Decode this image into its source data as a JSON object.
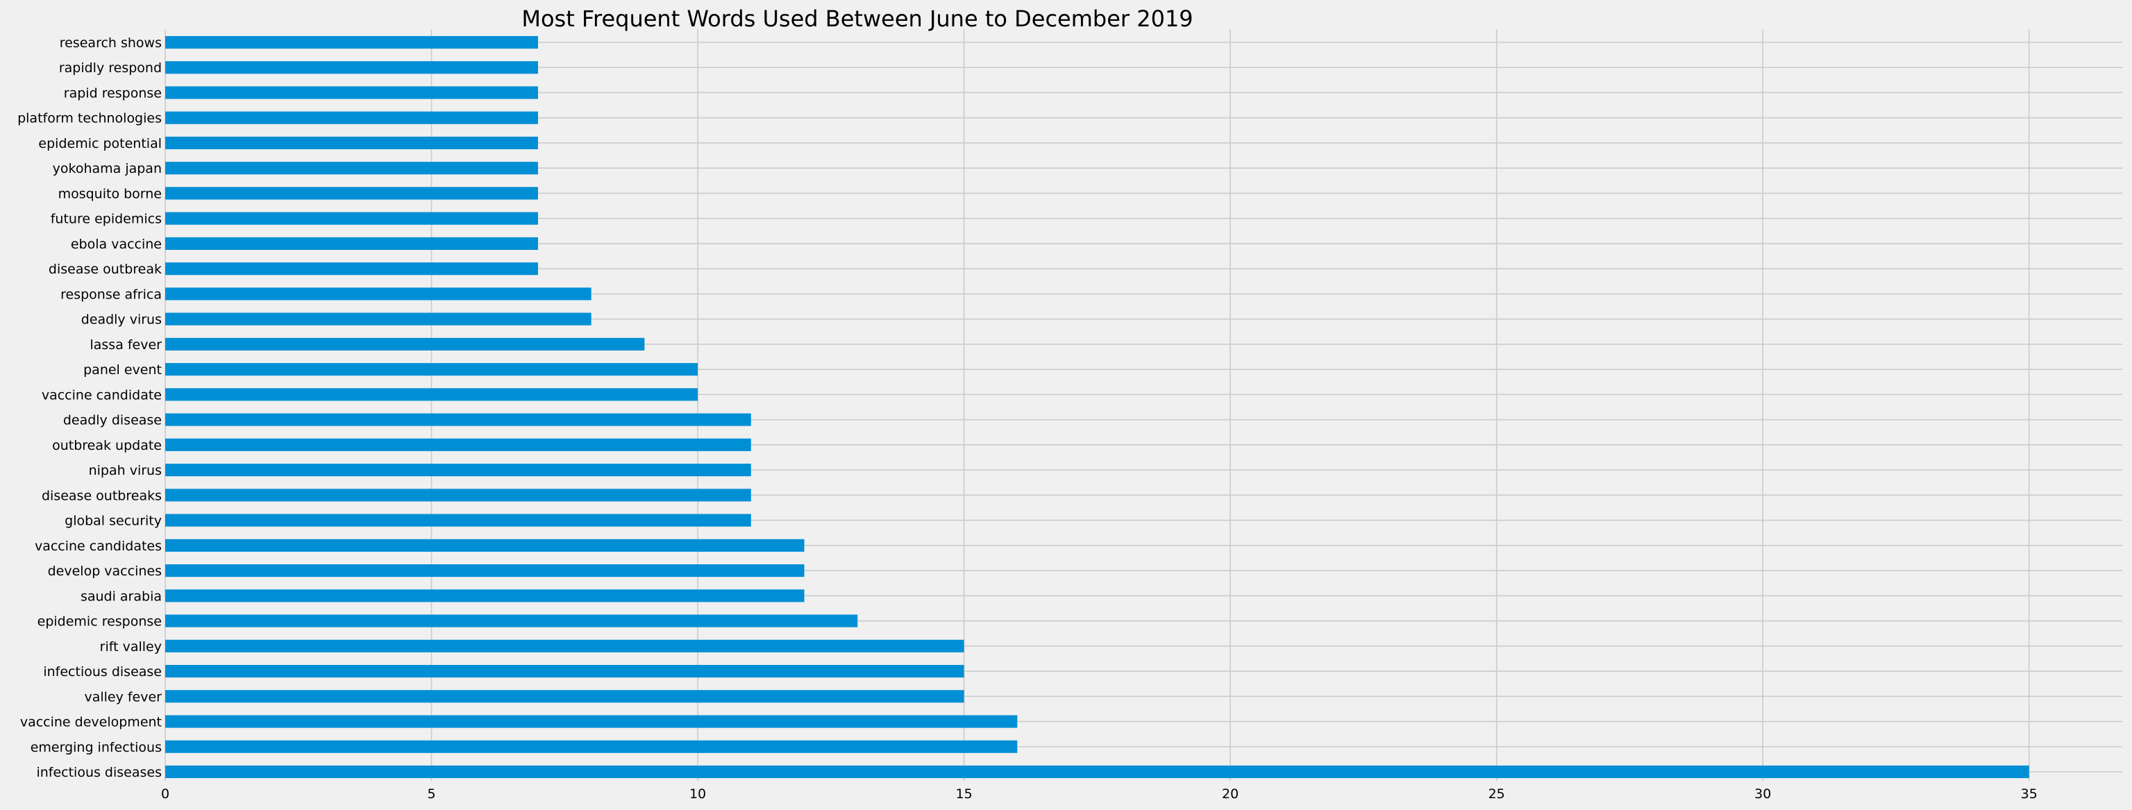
{
  "chart_data": {
    "type": "bar",
    "orientation": "horizontal",
    "title": "Most Frequent Words Used Between June to December 2019",
    "xlabel": "",
    "ylabel": "",
    "xlim": [
      0,
      36.75
    ],
    "x_ticks": [
      0,
      5,
      10,
      15,
      20,
      25,
      30,
      35
    ],
    "grid": true,
    "bar_color": "#008fd5",
    "background_color": "#f0f0f0",
    "grid_color": "#cbcbcb",
    "categories": [
      "infectious diseases",
      "emerging infectious",
      "vaccine development",
      "valley fever",
      "infectious disease",
      "rift valley",
      "epidemic response",
      "saudi arabia",
      "develop vaccines",
      "vaccine candidates",
      "global security",
      "disease outbreaks",
      "nipah virus",
      "outbreak update",
      "deadly disease",
      "vaccine candidate",
      "panel event",
      "lassa fever",
      "deadly virus",
      "response africa",
      "disease outbreak",
      "ebola vaccine",
      "future epidemics",
      "mosquito borne",
      "yokohama japan",
      "epidemic potential",
      "platform technologies",
      "rapid response",
      "rapidly respond",
      "research shows"
    ],
    "values": [
      35,
      16,
      16,
      15,
      15,
      15,
      13,
      12,
      12,
      12,
      11,
      11,
      11,
      11,
      11,
      10,
      10,
      9,
      8,
      8,
      7,
      7,
      7,
      7,
      7,
      7,
      7,
      7,
      7,
      7
    ]
  }
}
